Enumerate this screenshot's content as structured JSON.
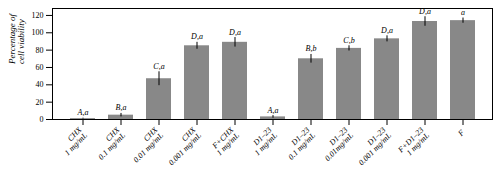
{
  "chart_data": {
    "type": "bar",
    "categories": [
      "CHX\n1 mg/mL",
      "CHX\n0.1 mg/mL",
      "CHX\n0.01 mg/mL",
      "CHX\n0.001 mg/mL",
      "F+CHX\n1 mg/mL",
      "D1–23\n1 mg/mL",
      "D1–23\n0.1 mg/mL",
      "D1–23\n0.01mg/mL",
      "D1–23\n0.001 mg/mL",
      "F+D1–23\n1 mg/mL",
      "F"
    ],
    "values": [
      1.0,
      5.0,
      47.0,
      85.0,
      89.0,
      3.0,
      70.0,
      82.0,
      93.0,
      113.0,
      114.0
    ],
    "errors": [
      0.5,
      2.0,
      8.0,
      4.0,
      5.5,
      1.5,
      5.0,
      3.0,
      3.5,
      5.5,
      3.0
    ],
    "annotations": [
      "A,a",
      "B,a",
      "C,a",
      "D,a",
      "D,a",
      "A,a",
      "B,b",
      "C,b",
      "D,a",
      "D,a",
      "a"
    ],
    "color": "#888888",
    "ylabel": "Percentage of\ncell viability",
    "ylim": [
      0,
      128
    ],
    "yticks": [
      0,
      20,
      40,
      60,
      80,
      100,
      120
    ],
    "grid": false
  }
}
